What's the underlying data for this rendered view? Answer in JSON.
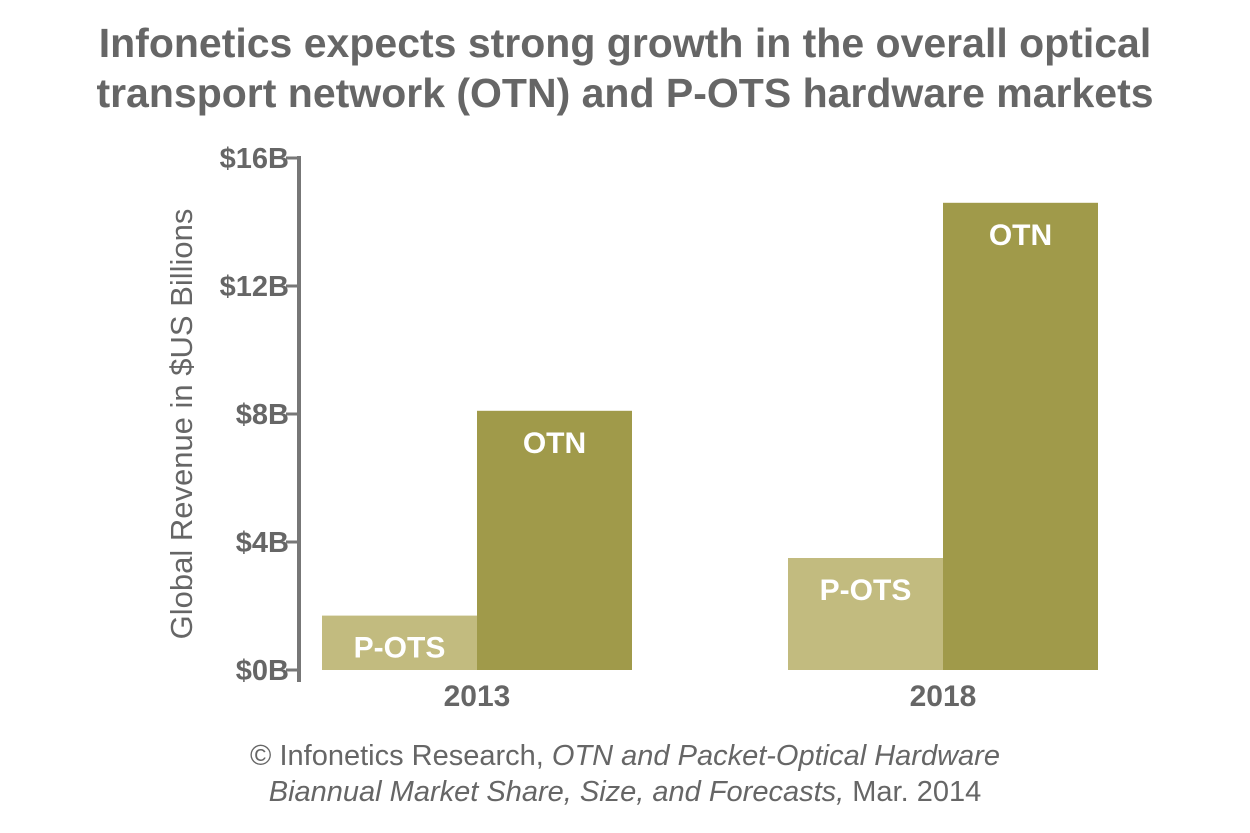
{
  "title_lines": [
    "Infonetics expects strong growth in the overall optical",
    "transport network (OTN) and P-OTS hardware markets"
  ],
  "source": {
    "line1_prefix": "© Infonetics Research, ",
    "line1_italic": "OTN and Packet-Optical Hardware",
    "line2_italic": "Biannual Market Share, Size, and Forecasts,",
    "line2_suffix": " Mar. 2014"
  },
  "colors": {
    "text": "#666666",
    "axis": "#777777",
    "p_ots": "#c2bb7f",
    "otn": "#a09a4a",
    "bar_label": "#ffffff"
  },
  "chart_data": {
    "type": "bar",
    "categories": [
      "2013",
      "2018"
    ],
    "series": [
      {
        "name": "P-OTS",
        "values": [
          1.7,
          3.5
        ],
        "color": "#c2bb7f"
      },
      {
        "name": "OTN",
        "values": [
          8.1,
          14.6
        ],
        "color": "#a09a4a"
      }
    ],
    "ylabel": "Global Revenue in $US Billions",
    "ylim": [
      0,
      16
    ],
    "yticks": [
      0,
      4,
      8,
      12,
      16
    ],
    "ytick_labels": [
      "$0B",
      "$4B",
      "$8B",
      "$12B",
      "$16B"
    ],
    "legend": "none (series names shown inside bars)",
    "grid": false
  }
}
